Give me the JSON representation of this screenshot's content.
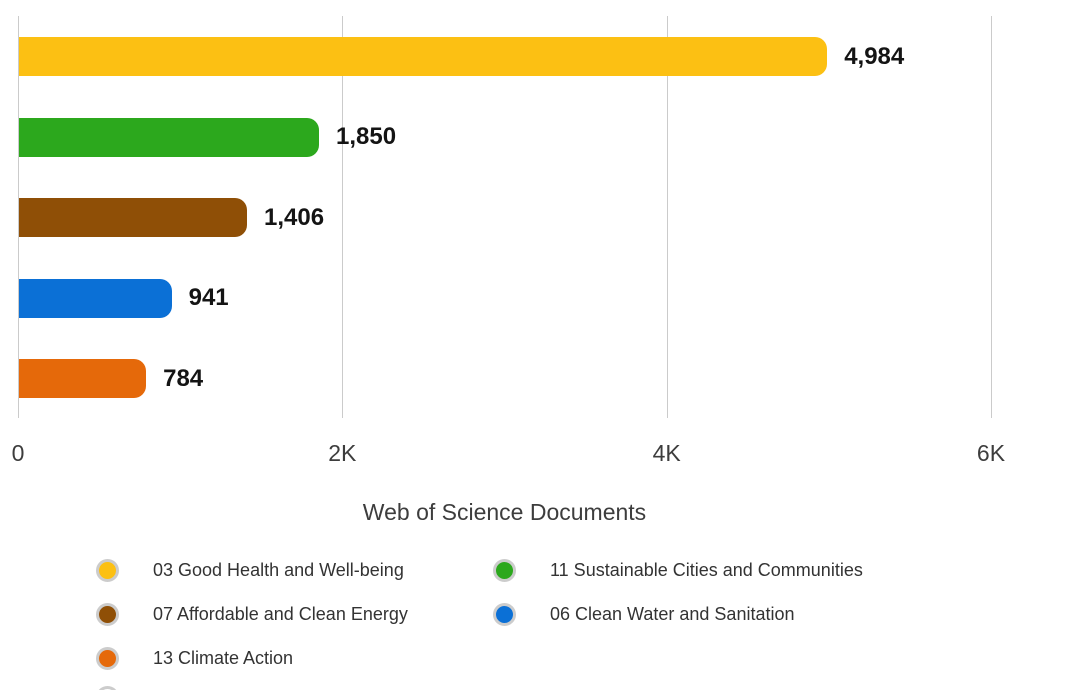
{
  "chart_data": {
    "type": "bar",
    "orientation": "horizontal",
    "xlabel": "Web of Science Documents",
    "ylabel": "",
    "xlim": [
      0,
      6000
    ],
    "grid": "vertical",
    "legend_position": "bottom",
    "legend_columns": 2,
    "categories": [
      "03 Good Health and Well-being",
      "11 Sustainable Cities and Communities",
      "07 Affordable and Clean Energy",
      "06 Clean Water and Sanitation",
      "13 Climate Action"
    ],
    "values": [
      4984,
      1850,
      1406,
      941,
      784
    ],
    "value_labels": [
      "4,984",
      "1,850",
      "1,406",
      "941",
      "784"
    ],
    "colors": [
      "#FCC013",
      "#2CA81D",
      "#8F4F06",
      "#0B70D6",
      "#E5690A"
    ],
    "x_ticks": [
      {
        "value": 0,
        "label": "0"
      },
      {
        "value": 2000,
        "label": "2K"
      },
      {
        "value": 4000,
        "label": "4K"
      },
      {
        "value": 6000,
        "label": "6K"
      }
    ],
    "legend_swatch_ring_color": "#cccccc",
    "partial_next_legend_row_visible": true
  }
}
